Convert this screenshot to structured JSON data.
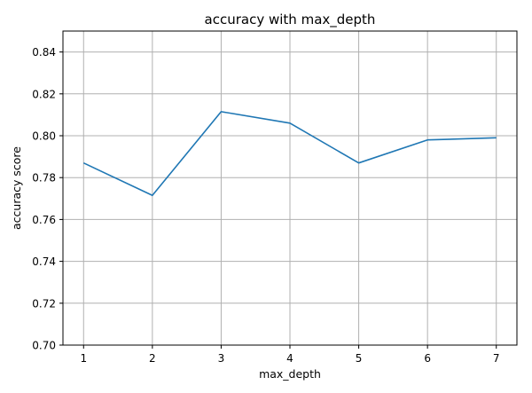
{
  "chart_data": {
    "type": "line",
    "title": "accuracy with max_depth",
    "xlabel": "max_depth",
    "ylabel": "accuracy score",
    "x": [
      1,
      2,
      3,
      4,
      5,
      6,
      7
    ],
    "xticks": [
      "1",
      "2",
      "3",
      "4",
      "5",
      "6",
      "7"
    ],
    "xlim": [
      0.7,
      7.3
    ],
    "ylim": [
      0.7,
      0.85
    ],
    "yticks": [
      "0.70",
      "0.72",
      "0.74",
      "0.76",
      "0.78",
      "0.80",
      "0.82",
      "0.84"
    ],
    "grid": true,
    "series": [
      {
        "values": [
          0.787,
          0.7715,
          0.8115,
          0.806,
          0.787,
          0.798,
          0.799
        ],
        "color": "#1f77b4"
      }
    ]
  }
}
